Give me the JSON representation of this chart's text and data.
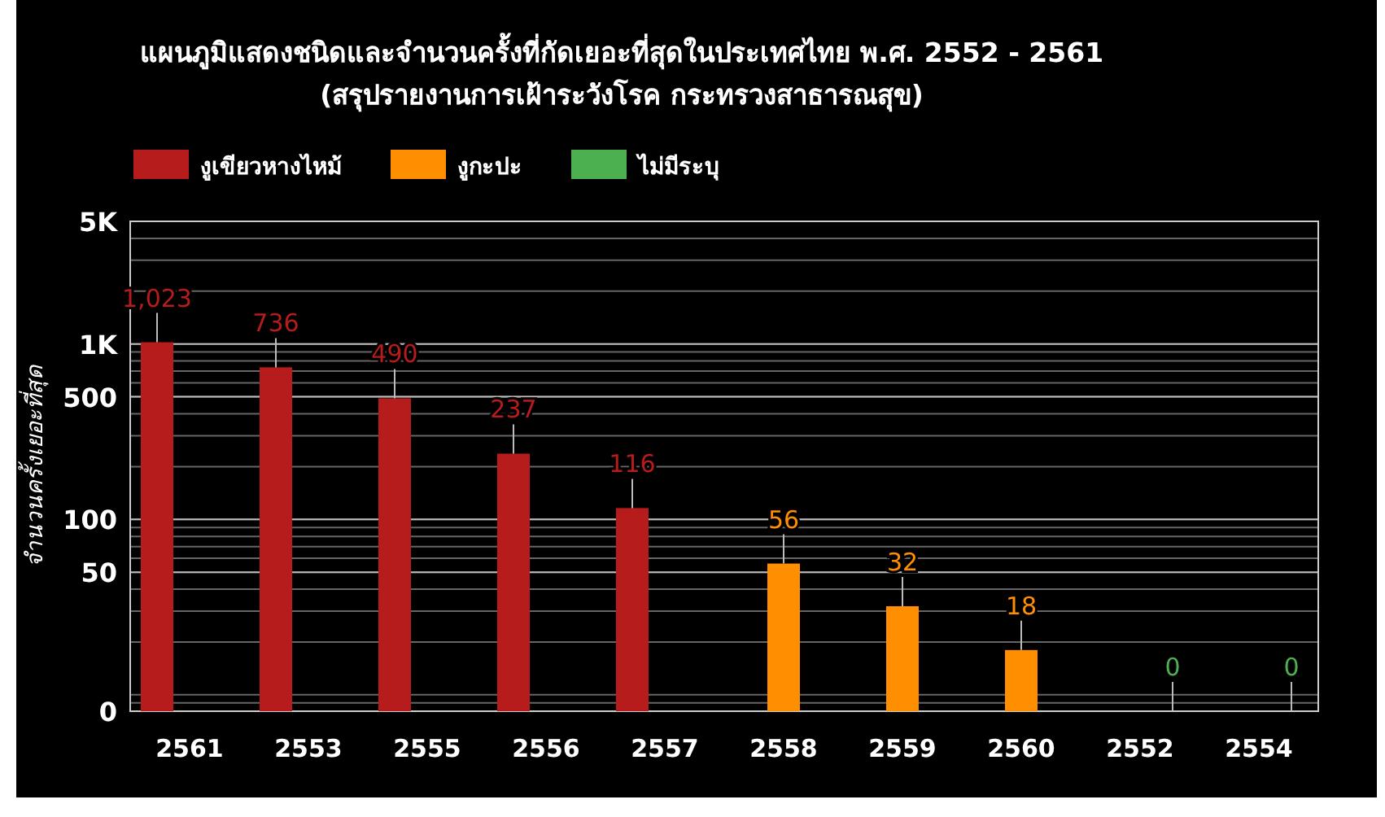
{
  "chart_data": {
    "type": "bar",
    "title": "แผนภูมิแสดงชนิดและจำนวนครั้งที่กัดเยอะที่สุดในประเทศไทย พ.ศ. 2552 - 2561",
    "subtitle": "(สรุปรายงานการเฝ้าระวังโรค กระทรวงสาธารณสุข)",
    "ylabel": "จำนวนครั้งเยอะที่สุด",
    "categories": [
      "2561",
      "2553",
      "2555",
      "2556",
      "2557",
      "2558",
      "2559",
      "2560",
      "2552",
      "2554"
    ],
    "series": [
      {
        "name": "งูเขียวหางไหม้",
        "color": "#b71c1c",
        "values": [
          1023,
          736,
          490,
          237,
          116,
          null,
          null,
          null,
          null,
          null
        ]
      },
      {
        "name": "งูกะปะ",
        "color": "#ff8f00",
        "values": [
          null,
          null,
          null,
          null,
          null,
          56,
          32,
          18,
          null,
          null
        ]
      },
      {
        "name": "ไม่มีระบุ",
        "color": "#4caf50",
        "values": [
          null,
          null,
          null,
          null,
          null,
          null,
          null,
          null,
          0,
          0
        ]
      }
    ],
    "value_labels": [
      [
        "1,023",
        "736",
        "490",
        "237",
        "116",
        null,
        null,
        null,
        null,
        null
      ],
      [
        null,
        null,
        null,
        null,
        null,
        "56",
        "32",
        "18",
        null,
        null
      ],
      [
        null,
        null,
        null,
        null,
        null,
        null,
        null,
        null,
        "0",
        "0"
      ]
    ],
    "log": "y",
    "ylim": [
      0,
      5000
    ],
    "yticks": [
      0,
      50,
      100,
      500,
      {
        "value": 1000,
        "label": "1K"
      },
      {
        "value": 5000,
        "label": "5K"
      }
    ],
    "grid": true,
    "legend": "top left"
  }
}
